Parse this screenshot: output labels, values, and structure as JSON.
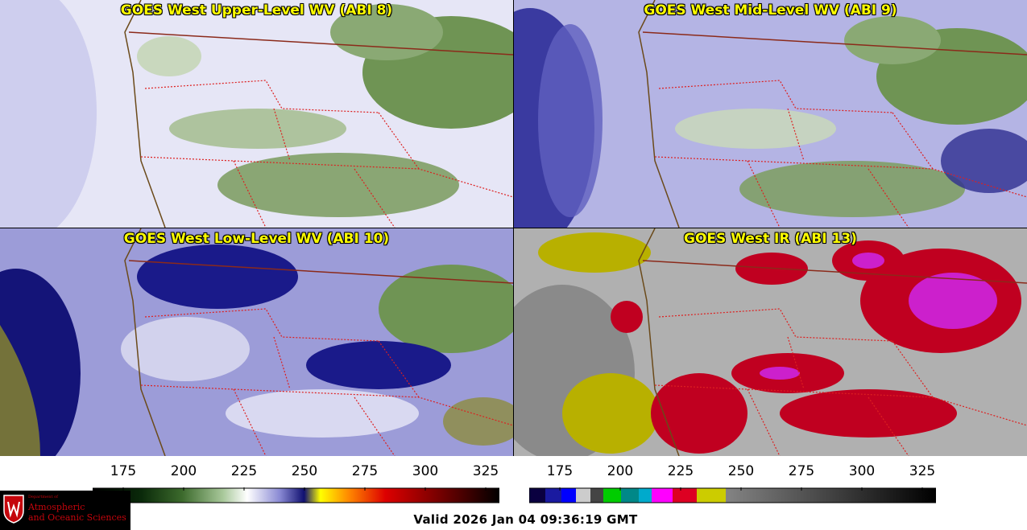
{
  "panels": [
    {
      "title": "GOES West Upper-Level WV (ABI 8)",
      "base": "#e8e8f8",
      "cold": "#6d8f4e",
      "dark": "#8a8ad0"
    },
    {
      "title": "GOES West Mid-Level WV (ABI 9)",
      "base": "#b8b8e6",
      "cold": "#6d8f4e",
      "dark": "#2a2a90"
    },
    {
      "title": "GOES West Low-Level WV (ABI 10)",
      "base": "#9a9ad8",
      "cold": "#6d8f4e",
      "dark": "#101070"
    },
    {
      "title": "GOES West IR (ABI 13)",
      "base": "#a8a8a8",
      "cold": "#cc0022",
      "dark": "#707070"
    }
  ],
  "colorbars": [
    {
      "ticks": [
        "175",
        "200",
        "225",
        "250",
        "275",
        "300",
        "325"
      ]
    },
    {
      "ticks": [
        "175",
        "200",
        "225",
        "250",
        "275",
        "300",
        "325"
      ]
    }
  ],
  "logo": {
    "dept": "Department of",
    "line1": "Atmospheric",
    "line2": "and Oceanic Sciences"
  },
  "valid_time": "Valid 2026 Jan 04 09:36:19 GMT"
}
